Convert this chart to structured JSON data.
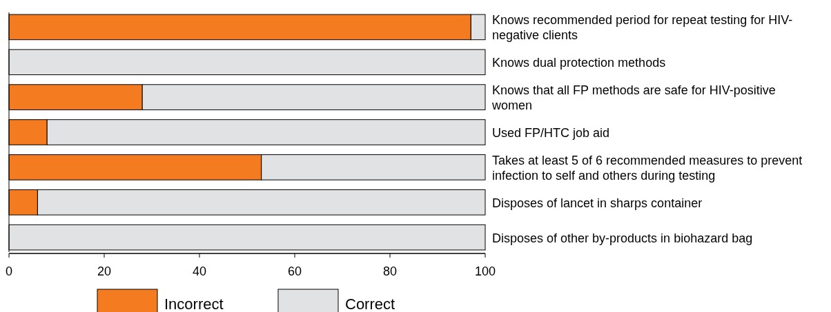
{
  "chart_data": {
    "type": "bar",
    "orientation": "horizontal",
    "stacked": true,
    "categories": [
      "Knows recommended period for repeat testing for HIV-negative clients",
      "Knows dual protection methods",
      "Knows that all FP methods are safe for HIV-positive women",
      "Used FP/HTC job aid",
      "Takes at least 5 of 6 recommended measures to prevent infection to self and others during testing",
      "Disposes of lancet in sharps container",
      "Disposes of other by-products in biohazard bag"
    ],
    "series": [
      {
        "name": "Incorrect",
        "color": "#f47b20",
        "values": [
          97,
          0,
          28,
          8,
          53,
          6,
          0
        ]
      },
      {
        "name": "Correct",
        "color": "#e1e2e4",
        "values": [
          3,
          100,
          72,
          92,
          47,
          94,
          100
        ]
      }
    ],
    "xlim": [
      0,
      100
    ],
    "xticks": [
      0,
      20,
      40,
      60,
      80,
      100
    ],
    "legend": "bottom",
    "grid": false
  }
}
